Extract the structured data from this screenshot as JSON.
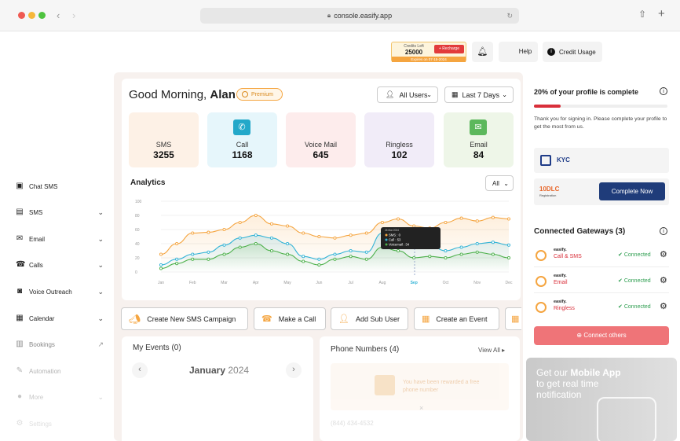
{
  "browser": {
    "url": "console.easify.app"
  },
  "topbar": {
    "credits_left_label": "Credits Left",
    "credits_value": "25000",
    "recharge_label": "+ Recharge",
    "expires_label": "Expires on 07-15-2024",
    "help_label": "Help",
    "credit_usage_label": "Credit Usage"
  },
  "sidebar": {
    "items": [
      {
        "label": "Chat SMS",
        "icon": "chat-icon"
      },
      {
        "label": "SMS",
        "icon": "sms-icon"
      },
      {
        "label": "Email",
        "icon": "email-icon"
      },
      {
        "label": "Calls",
        "icon": "phone-icon"
      },
      {
        "label": "Voice Outreach",
        "icon": "voice-icon"
      },
      {
        "label": "Calendar",
        "icon": "calendar-icon"
      },
      {
        "label": "Bookings",
        "icon": "bookings-icon"
      },
      {
        "label": "Automation",
        "icon": "automation-icon"
      },
      {
        "label": "More",
        "icon": "more-icon"
      },
      {
        "label": "Settings",
        "icon": "settings-icon"
      }
    ]
  },
  "greeting": {
    "prefix": "Good Morning, ",
    "name": "Alan",
    "badge": "Premium"
  },
  "filters": {
    "users": "All Users",
    "range": "Last 7 Days"
  },
  "stats": [
    {
      "label": "SMS",
      "value": "3255",
      "color": "#fdf1e6"
    },
    {
      "label": "Call",
      "value": "1168",
      "color": "#e6f6fb"
    },
    {
      "label": "Voice Mail",
      "value": "645",
      "color": "#fdecec"
    },
    {
      "label": "Ringless",
      "value": "102",
      "color": "#f1ecf8"
    },
    {
      "label": "Email",
      "value": "84",
      "color": "#eef6e8"
    }
  ],
  "analytics": {
    "title": "Analytics",
    "filter": "All"
  },
  "chart_data": {
    "type": "line",
    "title": "Analytics",
    "categories": [
      "Jan",
      "Feb",
      "Mar",
      "Apr",
      "May",
      "Jun",
      "Jul",
      "Aug",
      "Sep",
      "Oct",
      "Nov",
      "Dec"
    ],
    "x": [
      0,
      0.5,
      1,
      1.5,
      2,
      2.5,
      3,
      3.5,
      4,
      4.5,
      5,
      5.5,
      6,
      6.5,
      7,
      7.5,
      8,
      8.5,
      9,
      9.5,
      10,
      10.5,
      11
    ],
    "yticks": [
      0,
      20,
      40,
      60,
      80,
      100
    ],
    "ylim": [
      0,
      100
    ],
    "grid": true,
    "series": [
      {
        "name": "SMS",
        "color": "#f5a540",
        "values": [
          25,
          40,
          55,
          56,
          60,
          70,
          80,
          68,
          65,
          55,
          50,
          48,
          52,
          55,
          70,
          75,
          65,
          62,
          70,
          76,
          72,
          77,
          75
        ]
      },
      {
        "name": "Call",
        "color": "#32b3d6",
        "values": [
          10,
          18,
          25,
          28,
          38,
          48,
          52,
          48,
          40,
          22,
          18,
          25,
          30,
          28,
          55,
          50,
          40,
          38,
          30,
          35,
          40,
          42,
          38
        ]
      },
      {
        "name": "Voicemail",
        "color": "#4cb04a",
        "values": [
          5,
          12,
          18,
          18,
          25,
          35,
          40,
          30,
          25,
          15,
          10,
          18,
          22,
          18,
          35,
          30,
          20,
          22,
          20,
          25,
          28,
          25,
          20
        ]
      }
    ],
    "tooltip": {
      "date": "26 Mar 2024",
      "lines": [
        "SMS : 0",
        "Call : 53",
        "Voicemail : 34"
      ]
    }
  },
  "actions": [
    {
      "label": "Create New SMS Campaign"
    },
    {
      "label": "Make a Call"
    },
    {
      "label": "Add Sub User"
    },
    {
      "label": "Create an Event"
    }
  ],
  "events": {
    "title": "My Events (0)",
    "month": "January",
    "year": "2024"
  },
  "phones": {
    "title": "Phone Numbers (4)",
    "view_all": "View All",
    "reward_text": "You have been rewarded a free phone number",
    "number": "(844) 434-4532"
  },
  "profile": {
    "title": "20% of your profile is complete",
    "progress": 0.2,
    "desc": "Thank you for signing in. Please complete your profile to get the most from us.",
    "kyc_label": "KYC",
    "tendlc_label": "10DLC",
    "tendlc_sub": "Registration",
    "complete_label": "Complete Now"
  },
  "gateways": {
    "title": "Connected Gateways (3)",
    "rows": [
      {
        "brand": "easify.",
        "type": "Call & SMS",
        "status": "Connected"
      },
      {
        "brand": "easify.",
        "type": "Email",
        "status": "Connected"
      },
      {
        "brand": "easify.",
        "type": "Ringless",
        "status": "Connected"
      }
    ],
    "connect_label": "Connect others"
  },
  "promo": {
    "line1_prefix": "Get our ",
    "line1_bold": "Mobile App",
    "line2": "to get real time",
    "line3": "notification"
  }
}
